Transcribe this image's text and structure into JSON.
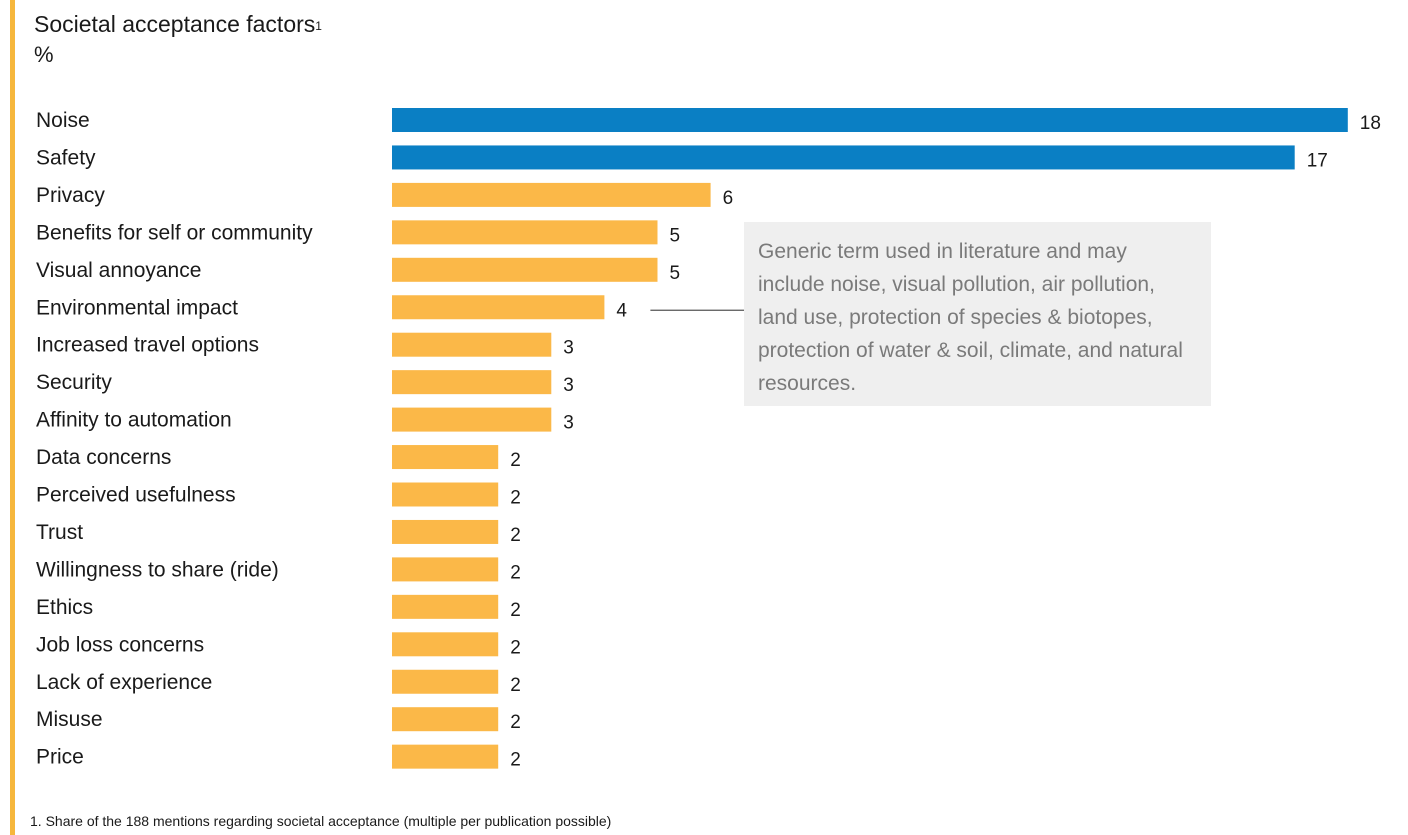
{
  "header": {
    "title": "Societal acceptance factors",
    "title_sup": "1",
    "unit": "%"
  },
  "chart_data": {
    "type": "bar",
    "orientation": "horizontal",
    "title": "Societal acceptance factors",
    "unit": "%",
    "categories": [
      "Noise",
      "Safety",
      "Privacy",
      "Benefits for self or community",
      "Visual annoyance",
      "Environmental impact",
      "Increased travel options",
      "Security",
      "Affinity to automation",
      "Data concerns",
      "Perceived usefulness",
      "Trust",
      "Willingness to share (ride)",
      "Ethics",
      "Job loss concerns",
      "Lack of experience",
      "Misuse",
      "Price"
    ],
    "values": [
      18,
      17,
      6,
      5,
      5,
      4,
      3,
      3,
      3,
      2,
      2,
      2,
      2,
      2,
      2,
      2,
      2,
      2
    ],
    "highlight_colors": [
      "#0a7fc4",
      "#0a7fc4",
      "#fbb848",
      "#fbb848",
      "#fbb848",
      "#fbb848",
      "#fbb848",
      "#fbb848",
      "#fbb848",
      "#fbb848",
      "#fbb848",
      "#fbb848",
      "#fbb848",
      "#fbb848",
      "#fbb848",
      "#fbb848",
      "#fbb848",
      "#fbb848"
    ],
    "grid": false,
    "legend": "none"
  },
  "annotation": {
    "target": "Environmental impact",
    "text": "Generic term used in literature and may include noise, visual pollution, air pollution, land use, protection of species & biotopes, protection of water & soil, climate, and natural resources."
  },
  "footnote": "1. Share of the 188 mentions regarding societal acceptance (multiple per publication possible)",
  "colors": {
    "highlight": "#0a7fc4",
    "default": "#fbb848",
    "accent": "#f6b73c"
  }
}
